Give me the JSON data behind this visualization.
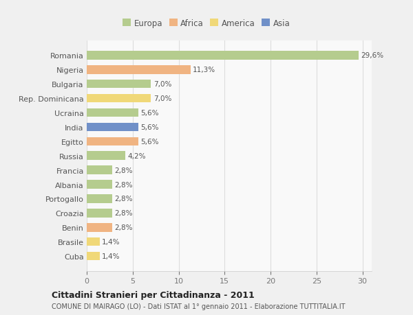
{
  "countries": [
    "Romania",
    "Nigeria",
    "Bulgaria",
    "Rep. Dominicana",
    "Ucraina",
    "India",
    "Egitto",
    "Russia",
    "Francia",
    "Albania",
    "Portogallo",
    "Croazia",
    "Benin",
    "Brasile",
    "Cuba"
  ],
  "values": [
    29.6,
    11.3,
    7.0,
    7.0,
    5.6,
    5.6,
    5.6,
    4.2,
    2.8,
    2.8,
    2.8,
    2.8,
    2.8,
    1.4,
    1.4
  ],
  "labels": [
    "29,6%",
    "11,3%",
    "7,0%",
    "7,0%",
    "5,6%",
    "5,6%",
    "5,6%",
    "4,2%",
    "2,8%",
    "2,8%",
    "2,8%",
    "2,8%",
    "2,8%",
    "1,4%",
    "1,4%"
  ],
  "colors": [
    "#b5cc8e",
    "#f0b482",
    "#b5cc8e",
    "#f0d878",
    "#b5cc8e",
    "#7090c8",
    "#f0b482",
    "#b5cc8e",
    "#b5cc8e",
    "#b5cc8e",
    "#b5cc8e",
    "#b5cc8e",
    "#f0b482",
    "#f0d878",
    "#f0d878"
  ],
  "legend_labels": [
    "Europa",
    "Africa",
    "America",
    "Asia"
  ],
  "legend_colors": [
    "#b5cc8e",
    "#f0b482",
    "#f0d878",
    "#7090c8"
  ],
  "title": "Cittadini Stranieri per Cittadinanza - 2011",
  "subtitle": "COMUNE DI MAIRAGO (LO) - Dati ISTAT al 1° gennaio 2011 - Elaborazione TUTTITALIA.IT",
  "xlim": [
    0,
    31
  ],
  "xticks": [
    0,
    5,
    10,
    15,
    20,
    25,
    30
  ],
  "bg_color": "#f0f0f0",
  "plot_bg_color": "#f9f9f9"
}
